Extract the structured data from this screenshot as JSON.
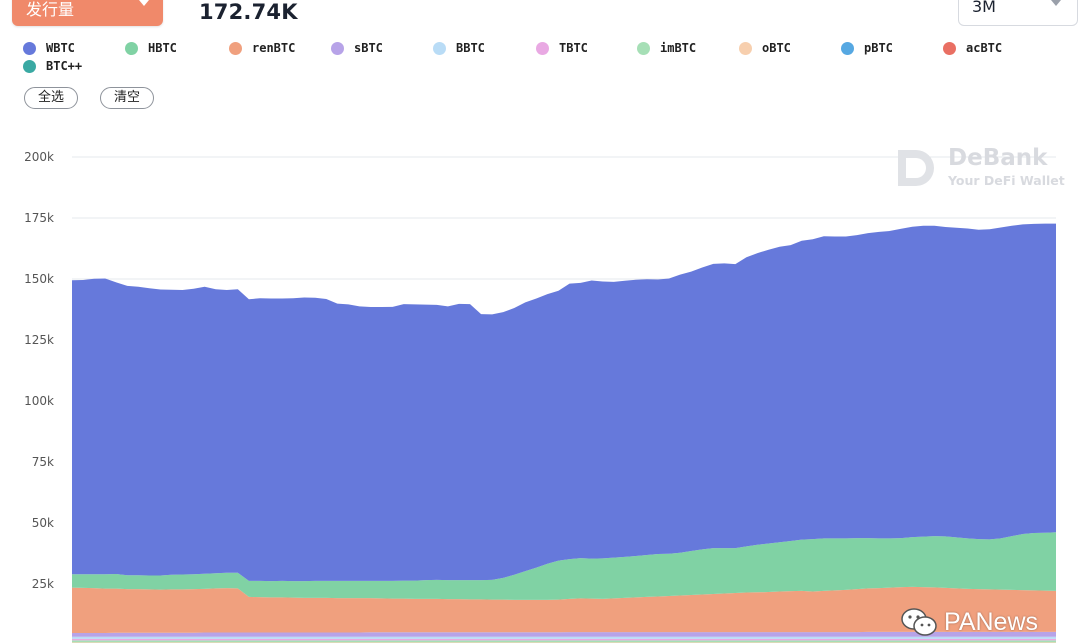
{
  "header": {
    "metric_label": "发行量",
    "total_value": "172.74K",
    "range_label": "3M"
  },
  "buttons": {
    "select_all": "全选",
    "clear": "清空"
  },
  "watermarks": {
    "debank_name": "DeBank",
    "debank_tagline": "Your DeFi Wallet",
    "panews": "PANews"
  },
  "chart_data": {
    "type": "area",
    "stacked": true,
    "title": "",
    "xlabel": "",
    "ylabel": "",
    "ylim": [
      0,
      200000
    ],
    "yticks": [
      0,
      25000,
      50000,
      75000,
      100000,
      125000,
      150000,
      175000,
      200000
    ],
    "ytick_labels": [
      "",
      "25k",
      "50k",
      "75k",
      "100k",
      "125k",
      "150k",
      "175k",
      "200k"
    ],
    "grid": true,
    "legend_position": "top-left",
    "x": [
      1,
      2,
      3,
      4,
      5,
      6,
      7,
      8,
      9,
      10,
      11,
      12,
      13,
      14,
      15,
      16,
      17,
      18,
      19,
      20,
      21,
      22,
      23,
      24,
      25,
      26,
      27,
      28,
      29,
      30,
      31,
      32,
      33,
      34,
      35,
      36,
      37,
      38,
      39,
      40,
      41,
      42,
      43,
      44,
      45,
      46,
      47,
      48,
      49,
      50,
      51,
      52,
      53,
      54,
      55,
      56,
      57,
      58,
      59,
      60,
      61,
      62,
      63,
      64,
      65,
      66,
      67,
      68,
      69,
      70,
      71,
      72,
      73,
      74,
      75,
      76,
      77,
      78,
      79,
      80,
      81,
      82,
      83,
      84,
      85,
      86,
      87,
      88,
      89,
      90
    ],
    "series": [
      {
        "name": "BTC++",
        "color": "#3aa9a3",
        "values": [
          200,
          200,
          200,
          200,
          200,
          200,
          200,
          200,
          200,
          200,
          200,
          200,
          200,
          200,
          200,
          200,
          200,
          200,
          200,
          200,
          200,
          200,
          200,
          200,
          200,
          200,
          200,
          200,
          200,
          200,
          200,
          200,
          200,
          200,
          200,
          200,
          200,
          200,
          200,
          200,
          200,
          200,
          200,
          200,
          200,
          200,
          200,
          200,
          200,
          200,
          200,
          200,
          200,
          200,
          200,
          200,
          200,
          200,
          200,
          200,
          200,
          200,
          200,
          200,
          200,
          200,
          200,
          200,
          200,
          200,
          200,
          200,
          200,
          200,
          200,
          200,
          200,
          200,
          200,
          200,
          200,
          200,
          200,
          200,
          200,
          200,
          200,
          200,
          200,
          200
        ]
      },
      {
        "name": "oBTC",
        "color": "#f7cfae",
        "values": [
          900,
          900,
          900,
          900,
          900,
          900,
          900,
          900,
          900,
          900,
          900,
          900,
          900,
          900,
          900,
          900,
          900,
          900,
          900,
          900,
          900,
          900,
          900,
          900,
          900,
          900,
          900,
          900,
          900,
          900,
          900,
          900,
          900,
          900,
          900,
          900,
          900,
          900,
          900,
          900,
          900,
          900,
          900,
          900,
          900,
          900,
          900,
          900,
          900,
          900,
          900,
          900,
          900,
          900,
          900,
          900,
          900,
          900,
          900,
          900,
          900,
          900,
          900,
          900,
          900,
          900,
          900,
          900,
          900,
          900,
          900,
          900,
          900,
          900,
          900,
          900,
          900,
          900,
          900,
          900,
          900,
          900,
          900,
          900,
          900,
          900,
          900,
          900,
          900,
          900
        ]
      },
      {
        "name": "imBTC",
        "color": "#a6dfb6",
        "values": [
          800,
          800,
          800,
          800,
          800,
          800,
          800,
          800,
          800,
          800,
          800,
          800,
          800,
          800,
          800,
          800,
          800,
          800,
          800,
          800,
          800,
          800,
          800,
          800,
          800,
          800,
          800,
          800,
          800,
          800,
          800,
          800,
          800,
          800,
          800,
          800,
          800,
          800,
          800,
          800,
          800,
          800,
          800,
          800,
          800,
          800,
          800,
          800,
          800,
          800,
          800,
          800,
          800,
          800,
          800,
          800,
          800,
          800,
          800,
          800,
          800,
          800,
          800,
          800,
          800,
          800,
          800,
          800,
          800,
          800,
          800,
          800,
          800,
          800,
          800,
          800,
          800,
          800,
          800,
          800,
          800,
          800,
          800,
          800,
          800,
          800,
          800,
          800,
          800,
          800
        ]
      },
      {
        "name": "TBTC",
        "color": "#e9a9e3",
        "values": [
          600,
          600,
          600,
          600,
          600,
          600,
          600,
          600,
          600,
          600,
          600,
          600,
          600,
          600,
          600,
          600,
          600,
          600,
          600,
          600,
          600,
          600,
          600,
          600,
          600,
          600,
          600,
          600,
          600,
          600,
          600,
          600,
          600,
          600,
          600,
          600,
          600,
          600,
          600,
          600,
          600,
          600,
          600,
          600,
          600,
          600,
          600,
          600,
          600,
          600,
          600,
          600,
          600,
          600,
          600,
          600,
          600,
          600,
          600,
          600,
          600,
          600,
          600,
          600,
          600,
          600,
          600,
          600,
          600,
          600,
          600,
          600,
          600,
          600,
          600,
          600,
          600,
          600,
          600,
          600,
          600,
          600,
          600,
          600,
          600,
          600,
          600,
          600,
          600,
          600
        ]
      },
      {
        "name": "BBTC",
        "color": "#b9dcf6",
        "values": [
          900,
          900,
          900,
          900,
          900,
          900,
          900,
          900,
          900,
          900,
          900,
          900,
          900,
          900,
          900,
          900,
          900,
          900,
          900,
          900,
          900,
          900,
          900,
          900,
          900,
          900,
          900,
          900,
          900,
          900,
          900,
          900,
          900,
          900,
          900,
          900,
          900,
          900,
          900,
          900,
          900,
          900,
          900,
          900,
          900,
          900,
          900,
          900,
          900,
          900,
          900,
          900,
          900,
          900,
          900,
          900,
          900,
          900,
          900,
          900,
          900,
          900,
          900,
          900,
          900,
          900,
          900,
          900,
          900,
          900,
          900,
          900,
          900,
          900,
          900,
          900,
          900,
          900,
          900,
          900,
          900,
          900,
          900,
          900,
          900,
          900,
          900,
          900,
          900,
          900
        ]
      },
      {
        "name": "sBTC",
        "color": "#b7a3e8",
        "values": [
          1500,
          1500,
          1500,
          1500,
          1600,
          1600,
          1600,
          1600,
          1600,
          1600,
          1600,
          1600,
          1700,
          1700,
          1700,
          1700,
          1700,
          1700,
          1700,
          1700,
          1700,
          1700,
          1700,
          1700,
          1700,
          1700,
          1700,
          1800,
          1800,
          1800,
          1800,
          1800,
          1800,
          1800,
          1800,
          1800,
          1800,
          1800,
          1800,
          1800,
          1800,
          1800,
          1800,
          1800,
          1800,
          1900,
          1900,
          1900,
          1900,
          1900,
          1900,
          1900,
          1900,
          1900,
          1900,
          1900,
          1900,
          1900,
          1900,
          1900,
          1900,
          1900,
          1900,
          1900,
          1900,
          1900,
          1900,
          1900,
          1900,
          1900,
          1900,
          1900,
          2000,
          2000,
          2000,
          2000,
          2000,
          2000,
          2000,
          2000,
          2000,
          2000,
          2000,
          2000,
          2000,
          2000,
          2000,
          2000,
          2000,
          2000
        ]
      },
      {
        "name": "renBTC",
        "color": "#f0a07e",
        "values": [
          18600,
          18500,
          18400,
          18200,
          18100,
          17900,
          17900,
          17800,
          17700,
          17800,
          17800,
          17900,
          17900,
          18100,
          18200,
          18100,
          14600,
          14500,
          14400,
          14400,
          14300,
          14200,
          14200,
          14200,
          14100,
          14100,
          14100,
          14000,
          13900,
          13800,
          13800,
          13700,
          13700,
          13700,
          13600,
          13600,
          13500,
          13500,
          13400,
          13400,
          13300,
          13300,
          13300,
          13300,
          13400,
          13600,
          13800,
          13700,
          13600,
          13800,
          14000,
          14200,
          14400,
          14600,
          14800,
          15000,
          15200,
          15400,
          15600,
          15800,
          16000,
          16200,
          16300,
          16400,
          16600,
          16800,
          16900,
          16600,
          16900,
          17100,
          17300,
          17600,
          17800,
          17900,
          18100,
          18300,
          18400,
          18300,
          18200,
          18000,
          17800,
          17600,
          17500,
          17400,
          17300,
          17200,
          17100,
          17000,
          16900,
          16800
        ]
      },
      {
        "name": "HBTC",
        "color": "#80d2a4",
        "values": [
          5500,
          5600,
          5700,
          5900,
          6000,
          5700,
          5700,
          5700,
          5800,
          6000,
          6100,
          6100,
          6200,
          6200,
          6300,
          6400,
          6600,
          6700,
          6700,
          6800,
          6800,
          6900,
          7000,
          7000,
          7100,
          7100,
          7100,
          7100,
          7200,
          7300,
          7400,
          7500,
          7700,
          7800,
          7800,
          7800,
          7900,
          7900,
          8100,
          8900,
          10300,
          11800,
          13200,
          14800,
          16000,
          16300,
          16500,
          16400,
          16600,
          16700,
          16800,
          17000,
          17200,
          17400,
          17300,
          17500,
          18000,
          18500,
          18800,
          18600,
          18400,
          18900,
          19500,
          19900,
          20200,
          20500,
          21000,
          21500,
          21500,
          21300,
          21100,
          20900,
          20600,
          20400,
          20200,
          20100,
          20400,
          20700,
          21000,
          21100,
          20900,
          20700,
          20500,
          20500,
          21000,
          22000,
          23000,
          23500,
          23700,
          24000
        ]
      },
      {
        "name": "WBTC",
        "color": "#6679db",
        "values": [
          120500,
          120600,
          121100,
          121200,
          119500,
          118600,
          118200,
          117700,
          117200,
          116800,
          116600,
          117000,
          117600,
          116400,
          115900,
          116200,
          115400,
          115800,
          115800,
          115700,
          115900,
          116200,
          116000,
          115500,
          113600,
          113300,
          112500,
          112200,
          112200,
          112300,
          113300,
          113200,
          112900,
          112700,
          112200,
          113200,
          113100,
          109000,
          108800,
          108900,
          109300,
          110100,
          110300,
          110500,
          110600,
          112900,
          112800,
          114000,
          113500,
          113000,
          113200,
          113200,
          113000,
          112500,
          112800,
          114000,
          114500,
          115500,
          116500,
          116700,
          116400,
          118500,
          119500,
          120400,
          121100,
          121300,
          122500,
          122900,
          123800,
          123700,
          123700,
          124200,
          125000,
          125600,
          126000,
          126800,
          127200,
          127400,
          127200,
          126800,
          126900,
          127000,
          126800,
          127100,
          127400,
          127200,
          126900,
          126700,
          126700,
          126500
        ]
      },
      {
        "name": "acBTC",
        "color": "#e96f63",
        "values": [
          0,
          0,
          0,
          0,
          0,
          0,
          0,
          0,
          0,
          0,
          0,
          0,
          0,
          0,
          0,
          0,
          0,
          0,
          0,
          0,
          0,
          0,
          0,
          0,
          0,
          0,
          0,
          0,
          0,
          0,
          0,
          0,
          0,
          0,
          0,
          0,
          0,
          0,
          0,
          0,
          0,
          0,
          0,
          0,
          0,
          0,
          0,
          0,
          0,
          0,
          0,
          0,
          0,
          0,
          0,
          0,
          0,
          0,
          0,
          0,
          0,
          0,
          0,
          0,
          0,
          0,
          0,
          0,
          0,
          0,
          0,
          0,
          0,
          0,
          0,
          0,
          0,
          0,
          0,
          0,
          0,
          0,
          0,
          0,
          0,
          0,
          0,
          0,
          0,
          0
        ]
      },
      {
        "name": "pBTC",
        "color": "#56a8e2",
        "values": [
          0,
          0,
          0,
          0,
          0,
          0,
          0,
          0,
          0,
          0,
          0,
          0,
          0,
          0,
          0,
          0,
          0,
          0,
          0,
          0,
          0,
          0,
          0,
          0,
          0,
          0,
          0,
          0,
          0,
          0,
          0,
          0,
          0,
          0,
          0,
          0,
          0,
          0,
          0,
          0,
          0,
          0,
          0,
          0,
          0,
          0,
          0,
          0,
          0,
          0,
          0,
          0,
          0,
          0,
          0,
          0,
          0,
          0,
          0,
          0,
          0,
          0,
          0,
          0,
          0,
          0,
          0,
          0,
          0,
          0,
          0,
          0,
          0,
          0,
          0,
          0,
          0,
          0,
          0,
          0,
          0,
          0,
          0,
          0,
          0,
          0,
          0,
          0,
          0,
          0
        ]
      }
    ],
    "legend": [
      {
        "name": "WBTC",
        "color": "#6679db"
      },
      {
        "name": "HBTC",
        "color": "#80d2a4"
      },
      {
        "name": "renBTC",
        "color": "#f0a07e"
      },
      {
        "name": "sBTC",
        "color": "#b7a3e8"
      },
      {
        "name": "BBTC",
        "color": "#b9dcf6"
      },
      {
        "name": "TBTC",
        "color": "#e9a9e3"
      },
      {
        "name": "imBTC",
        "color": "#a6dfb6"
      },
      {
        "name": "oBTC",
        "color": "#f7cfae"
      },
      {
        "name": "pBTC",
        "color": "#56a8e2"
      },
      {
        "name": "acBTC",
        "color": "#e96f63"
      },
      {
        "name": "BTC++",
        "color": "#3aa9a3"
      }
    ]
  }
}
